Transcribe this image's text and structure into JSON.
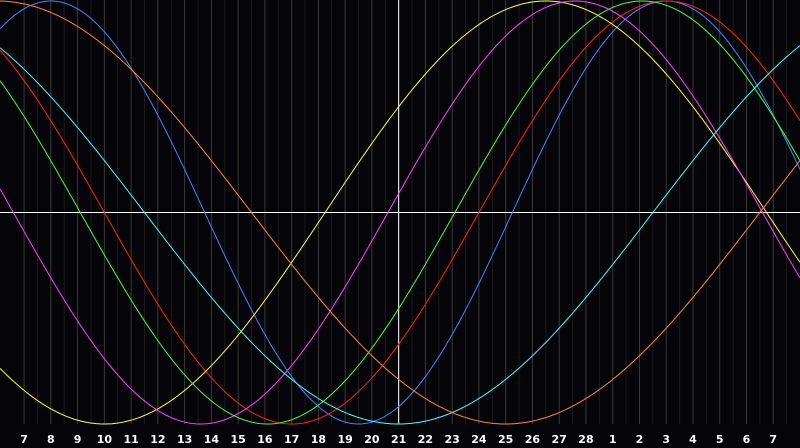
{
  "chart_data": {
    "type": "line",
    "title": "",
    "xlabel": "",
    "ylabel": "",
    "grid": true,
    "legend": "none",
    "background_color": "#050408",
    "grid_color": "#3a3a3a",
    "crosshair_color": "#ffffff",
    "x_tick_labels": [
      "7",
      "8",
      "9",
      "10",
      "11",
      "12",
      "13",
      "14",
      "15",
      "16",
      "17",
      "18",
      "19",
      "20",
      "21",
      "22",
      "23",
      "24",
      "25",
      "26",
      "27",
      "28",
      "1",
      "2",
      "3",
      "4",
      "5",
      "6",
      "7"
    ],
    "x_range": [
      6.1,
      36
    ],
    "y_range": [
      -1,
      1
    ],
    "crosshair": {
      "x": 21,
      "y": 0
    },
    "series": [
      {
        "color": "#4488ff",
        "period": 23,
        "peak_x": 8.0
      },
      {
        "color": "#ff2222",
        "period": 28,
        "peak_x": 31.0
      },
      {
        "color": "#ffff44",
        "period": 33,
        "peak_x": 26.5
      },
      {
        "color": "#ff44ff",
        "period": 28,
        "peak_x": 27.6
      },
      {
        "color": "#44ff44",
        "period": 28,
        "peak_x": 30.1
      },
      {
        "color": "#44ffff",
        "period": 38,
        "peak_x": 40.0
      },
      {
        "color": "#ff8833",
        "period": 38,
        "peak_x": 44.0
      }
    ]
  }
}
